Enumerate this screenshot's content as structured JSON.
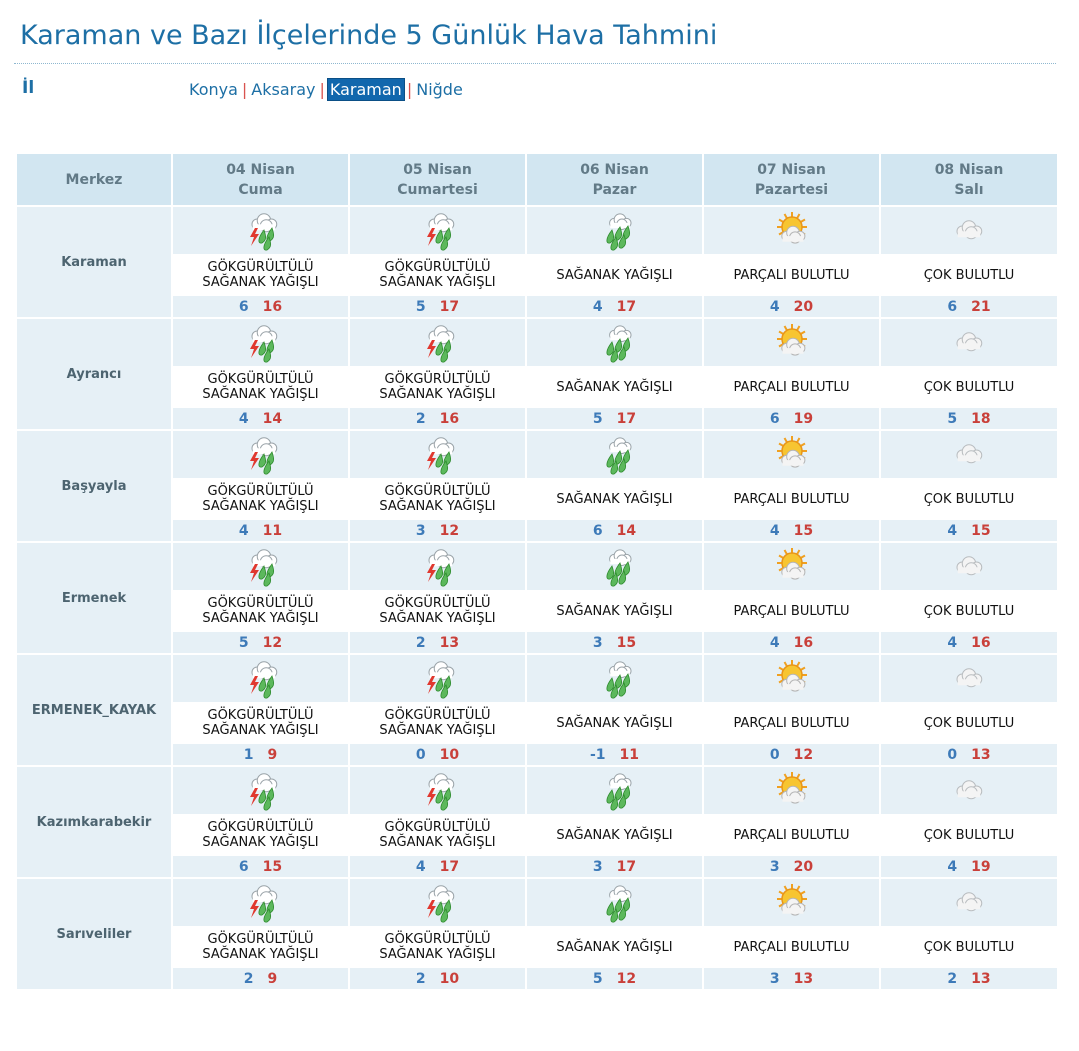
{
  "page": {
    "title": "Karaman ve Bazı İlçelerinde 5 Günlük Hava Tahmini",
    "il_label": "İl",
    "provinces": [
      {
        "label": "Konya",
        "active": false
      },
      {
        "label": "Aksaray",
        "active": false
      },
      {
        "label": "Karaman",
        "active": true
      },
      {
        "label": "Niğde",
        "active": false
      }
    ],
    "separator": "|"
  },
  "table": {
    "first_header": "Merkez",
    "days": [
      {
        "date": "04 Nisan",
        "weekday": "Cuma"
      },
      {
        "date": "05 Nisan",
        "weekday": "Cumartesi"
      },
      {
        "date": "06 Nisan",
        "weekday": "Pazar"
      },
      {
        "date": "07 Nisan",
        "weekday": "Pazartesi"
      },
      {
        "date": "08 Nisan",
        "weekday": "Salı"
      }
    ],
    "conditions": [
      {
        "icon": "thunder-shower-icon",
        "line1": "GÖKGÜRÜLTÜLÜ",
        "line2": "SAĞANAK YAĞIŞLI"
      },
      {
        "icon": "thunder-shower-icon",
        "line1": "GÖKGÜRÜLTÜLÜ",
        "line2": "SAĞANAK YAĞIŞLI"
      },
      {
        "icon": "shower-icon",
        "line1": "SAĞANAK YAĞIŞLI",
        "line2": ""
      },
      {
        "icon": "partly-cloudy-icon",
        "line1": "PARÇALI BULUTLU",
        "line2": ""
      },
      {
        "icon": "mostly-cloudy-icon",
        "line1": "ÇOK BULUTLU",
        "line2": ""
      }
    ],
    "stations": [
      {
        "name": "Karaman",
        "temps": [
          {
            "min": "6",
            "max": "16"
          },
          {
            "min": "5",
            "max": "17"
          },
          {
            "min": "4",
            "max": "17"
          },
          {
            "min": "4",
            "max": "20"
          },
          {
            "min": "6",
            "max": "21"
          }
        ]
      },
      {
        "name": "Ayrancı",
        "temps": [
          {
            "min": "4",
            "max": "14"
          },
          {
            "min": "2",
            "max": "16"
          },
          {
            "min": "5",
            "max": "17"
          },
          {
            "min": "6",
            "max": "19"
          },
          {
            "min": "5",
            "max": "18"
          }
        ]
      },
      {
        "name": "Başyayla",
        "temps": [
          {
            "min": "4",
            "max": "11"
          },
          {
            "min": "3",
            "max": "12"
          },
          {
            "min": "6",
            "max": "14"
          },
          {
            "min": "4",
            "max": "15"
          },
          {
            "min": "4",
            "max": "15"
          }
        ]
      },
      {
        "name": "Ermenek",
        "temps": [
          {
            "min": "5",
            "max": "12"
          },
          {
            "min": "2",
            "max": "13"
          },
          {
            "min": "3",
            "max": "15"
          },
          {
            "min": "4",
            "max": "16"
          },
          {
            "min": "4",
            "max": "16"
          }
        ]
      },
      {
        "name": "ERMENEK_KAYAK",
        "temps": [
          {
            "min": "1",
            "max": "9"
          },
          {
            "min": "0",
            "max": "10"
          },
          {
            "min": "-1",
            "max": "11"
          },
          {
            "min": "0",
            "max": "12"
          },
          {
            "min": "0",
            "max": "13"
          }
        ]
      },
      {
        "name": "Kazımkarabekir",
        "temps": [
          {
            "min": "6",
            "max": "15"
          },
          {
            "min": "4",
            "max": "17"
          },
          {
            "min": "3",
            "max": "17"
          },
          {
            "min": "3",
            "max": "20"
          },
          {
            "min": "4",
            "max": "19"
          }
        ]
      },
      {
        "name": "Sarıveliler",
        "temps": [
          {
            "min": "2",
            "max": "9"
          },
          {
            "min": "2",
            "max": "10"
          },
          {
            "min": "5",
            "max": "12"
          },
          {
            "min": "3",
            "max": "13"
          },
          {
            "min": "2",
            "max": "13"
          }
        ]
      }
    ]
  },
  "colors": {
    "title": "#1d6fa5",
    "header_bg": "#d2e6f1",
    "row_bg": "#e6f0f6",
    "temp_min": "#3d7ab8",
    "temp_max": "#c9403a",
    "active_link_bg": "#1167ad"
  }
}
